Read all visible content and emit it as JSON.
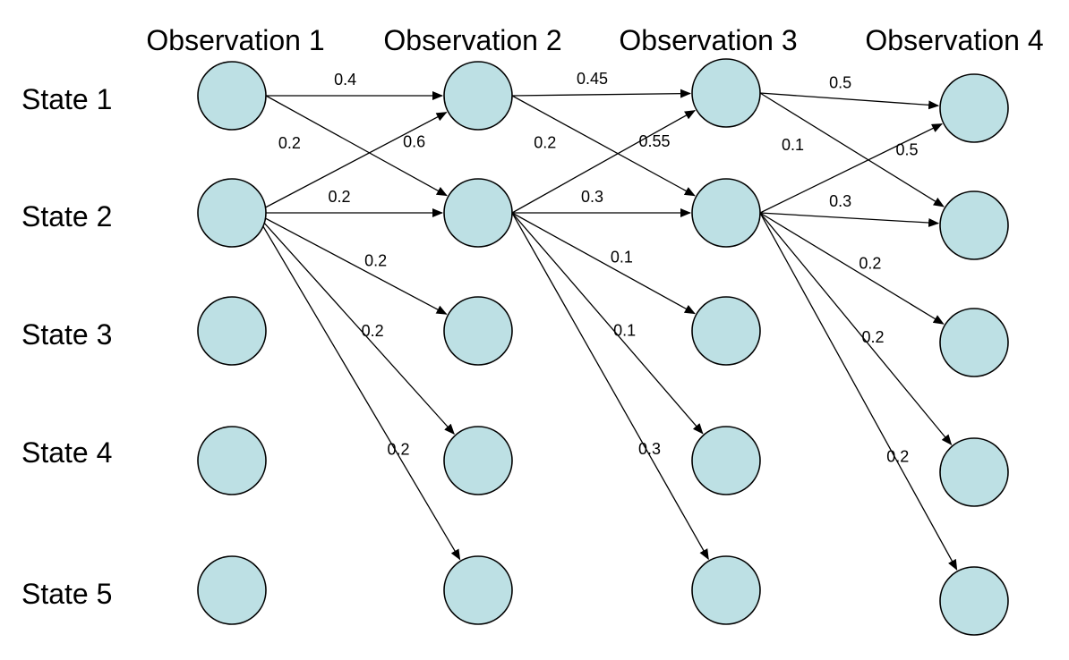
{
  "observations": [
    "Observation 1",
    "Observation 2",
    "Observation 3",
    "Observation 4"
  ],
  "states": [
    "State 1",
    "State 2",
    "State 3",
    "State 4",
    "State 5"
  ],
  "colors": {
    "node_fill": "#bde0e4",
    "stroke": "#000000"
  },
  "transitions": [
    {
      "from": [
        0,
        0
      ],
      "to": [
        1,
        0
      ],
      "label": "0.4"
    },
    {
      "from": [
        0,
        0
      ],
      "to": [
        1,
        1
      ],
      "label": "0.6"
    },
    {
      "from": [
        0,
        1
      ],
      "to": [
        1,
        0
      ],
      "label": "0.2"
    },
    {
      "from": [
        0,
        1
      ],
      "to": [
        1,
        1
      ],
      "label": "0.2"
    },
    {
      "from": [
        0,
        1
      ],
      "to": [
        1,
        2
      ],
      "label": "0.2"
    },
    {
      "from": [
        0,
        1
      ],
      "to": [
        1,
        3
      ],
      "label": "0.2"
    },
    {
      "from": [
        0,
        1
      ],
      "to": [
        1,
        4
      ],
      "label": "0.2"
    },
    {
      "from": [
        1,
        0
      ],
      "to": [
        2,
        0
      ],
      "label": "0.45"
    },
    {
      "from": [
        1,
        0
      ],
      "to": [
        2,
        1
      ],
      "label": "0.55"
    },
    {
      "from": [
        1,
        1
      ],
      "to": [
        2,
        0
      ],
      "label": "0.2"
    },
    {
      "from": [
        1,
        1
      ],
      "to": [
        2,
        1
      ],
      "label": "0.3"
    },
    {
      "from": [
        1,
        1
      ],
      "to": [
        2,
        2
      ],
      "label": "0.1"
    },
    {
      "from": [
        1,
        1
      ],
      "to": [
        2,
        3
      ],
      "label": "0.1"
    },
    {
      "from": [
        1,
        1
      ],
      "to": [
        2,
        4
      ],
      "label": "0.3"
    },
    {
      "from": [
        2,
        0
      ],
      "to": [
        3,
        0
      ],
      "label": "0.5"
    },
    {
      "from": [
        2,
        0
      ],
      "to": [
        3,
        1
      ],
      "label": "0.5"
    },
    {
      "from": [
        2,
        1
      ],
      "to": [
        3,
        0
      ],
      "label": "0.1"
    },
    {
      "from": [
        2,
        1
      ],
      "to": [
        3,
        1
      ],
      "label": "0.3"
    },
    {
      "from": [
        2,
        1
      ],
      "to": [
        3,
        2
      ],
      "label": "0.2"
    },
    {
      "from": [
        2,
        1
      ],
      "to": [
        3,
        3
      ],
      "label": "0.2"
    },
    {
      "from": [
        2,
        1
      ],
      "to": [
        3,
        4
      ],
      "label": "0.2"
    }
  ]
}
